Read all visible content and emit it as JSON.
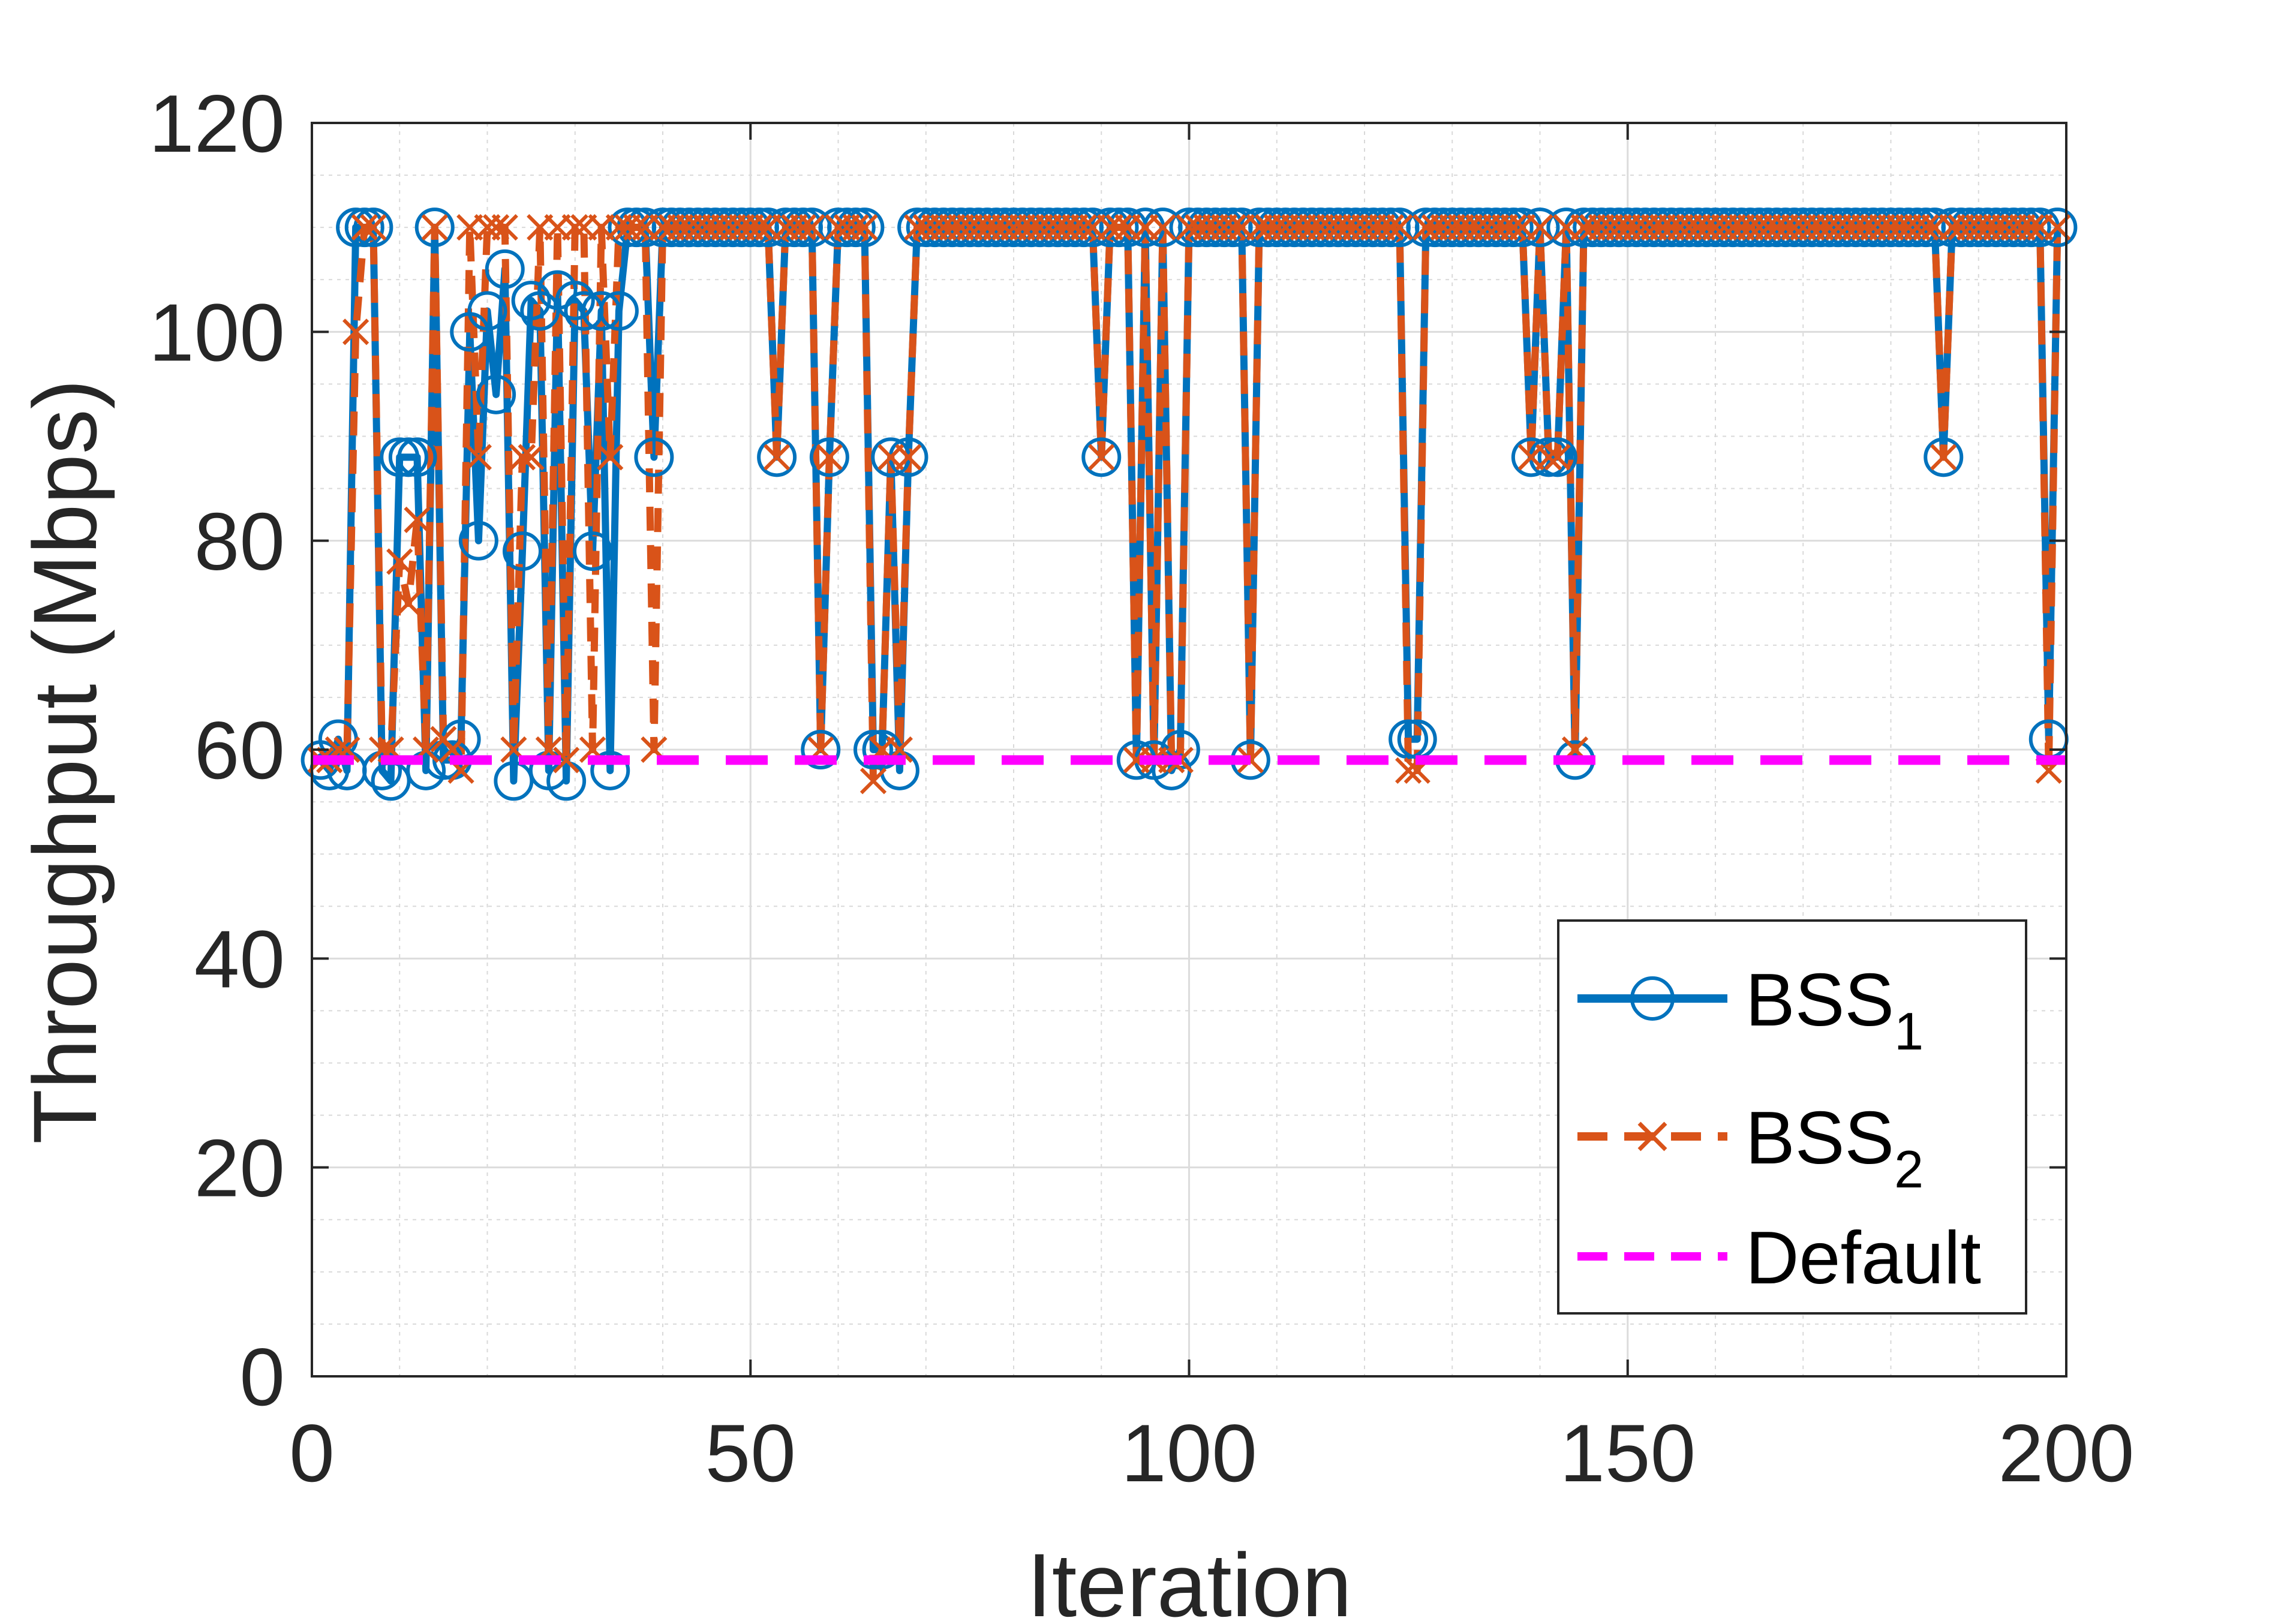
{
  "chart_data": {
    "type": "line",
    "xlabel": "Iteration",
    "ylabel": "Throughput (Mbps)",
    "xlim": [
      0,
      200
    ],
    "ylim": [
      0,
      120
    ],
    "xticks": [
      "0",
      "50",
      "100",
      "150",
      "200"
    ],
    "yticks": [
      "0",
      "20",
      "40",
      "60",
      "80",
      "100",
      "120"
    ],
    "grid": true,
    "minor_grid": true,
    "legend_position": "lower-right",
    "colors": {
      "bss1": "#0072bd",
      "bss2": "#d95319",
      "default": "#ff00ff"
    },
    "series": [
      {
        "name": "BSS",
        "subscript": "1",
        "marker": "circle",
        "line": "solid",
        "values": [
          59,
          58,
          61,
          58,
          110,
          110,
          110,
          58,
          57,
          88,
          88,
          88,
          58,
          110,
          59,
          59,
          61,
          100,
          80,
          102,
          94,
          106,
          57,
          79,
          103,
          102,
          58,
          104,
          57,
          103,
          102,
          79,
          102,
          58,
          102,
          110,
          110,
          110,
          88,
          110,
          110,
          110,
          110,
          110,
          110,
          110,
          110,
          110,
          110,
          110,
          110,
          110,
          88,
          110,
          110,
          110,
          110,
          60,
          88,
          110,
          110,
          110,
          110,
          60,
          60,
          88,
          58,
          88,
          110,
          110,
          110,
          110,
          110,
          110,
          110,
          110,
          110,
          110,
          110,
          110,
          110,
          110,
          110,
          110,
          110,
          110,
          110,
          110,
          110,
          88,
          110,
          110,
          110,
          59,
          110,
          59,
          110,
          58,
          60,
          110,
          110,
          110,
          110,
          110,
          110,
          110,
          59,
          110,
          110,
          110,
          110,
          110,
          110,
          110,
          110,
          110,
          110,
          110,
          110,
          110,
          110,
          110,
          110,
          110,
          61,
          61,
          110,
          110,
          110,
          110,
          110,
          110,
          110,
          110,
          110,
          110,
          110,
          110,
          88,
          110,
          88,
          88,
          110,
          59,
          110,
          110,
          110,
          110,
          110,
          110,
          110,
          110,
          110,
          110,
          110,
          110,
          110,
          110,
          110,
          110,
          110,
          110,
          110,
          110,
          110,
          110,
          110,
          110,
          110,
          110,
          110,
          110,
          110,
          110,
          110,
          110,
          110,
          110,
          110,
          110,
          110,
          110,
          110,
          110,
          110,
          88,
          110,
          110,
          110,
          110,
          110,
          110,
          110,
          110,
          110,
          110,
          110,
          61,
          110
        ]
      },
      {
        "name": "BSS",
        "subscript": "2",
        "marker": "x",
        "line": "dashed",
        "values": [
          59,
          59,
          60,
          60,
          100,
          110,
          110,
          60,
          60,
          78,
          74,
          82,
          60,
          110,
          61,
          60,
          58,
          110,
          88,
          110,
          110,
          110,
          60,
          88,
          88,
          110,
          60,
          110,
          59,
          110,
          110,
          60,
          110,
          88,
          110,
          110,
          110,
          110,
          60,
          110,
          110,
          110,
          110,
          110,
          110,
          110,
          110,
          110,
          110,
          110,
          110,
          110,
          88,
          110,
          110,
          110,
          110,
          60,
          88,
          110,
          110,
          110,
          110,
          57,
          60,
          88,
          60,
          88,
          110,
          110,
          110,
          110,
          110,
          110,
          110,
          110,
          110,
          110,
          110,
          110,
          110,
          110,
          110,
          110,
          110,
          110,
          110,
          110,
          110,
          88,
          110,
          110,
          110,
          59,
          110,
          59,
          110,
          59,
          59,
          110,
          110,
          110,
          110,
          110,
          110,
          110,
          59,
          110,
          110,
          110,
          110,
          110,
          110,
          110,
          110,
          110,
          110,
          110,
          110,
          110,
          110,
          110,
          110,
          110,
          58,
          58,
          110,
          110,
          110,
          110,
          110,
          110,
          110,
          110,
          110,
          110,
          110,
          110,
          88,
          110,
          88,
          88,
          110,
          60,
          110,
          110,
          110,
          110,
          110,
          110,
          110,
          110,
          110,
          110,
          110,
          110,
          110,
          110,
          110,
          110,
          110,
          110,
          110,
          110,
          110,
          110,
          110,
          110,
          110,
          110,
          110,
          110,
          110,
          110,
          110,
          110,
          110,
          110,
          110,
          110,
          110,
          110,
          110,
          110,
          110,
          88,
          110,
          110,
          110,
          110,
          110,
          110,
          110,
          110,
          110,
          110,
          110,
          58,
          110
        ]
      },
      {
        "name": "Default",
        "line": "dashed",
        "x": [
          0,
          200
        ],
        "values": [
          59,
          59
        ]
      }
    ]
  }
}
